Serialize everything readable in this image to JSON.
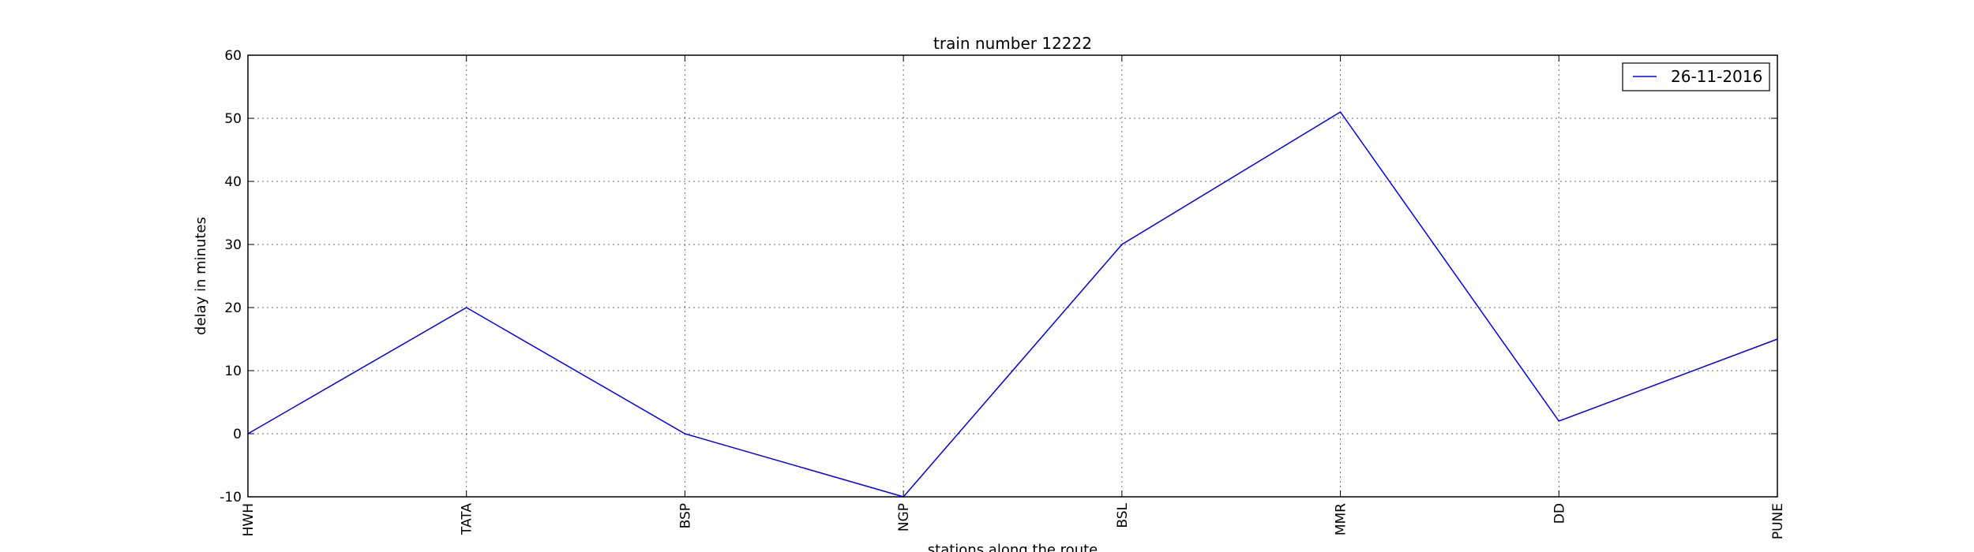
{
  "chart_data": {
    "type": "line",
    "title": "train number 12222",
    "xlabel": "stations along the route",
    "ylabel": "delay in minutes",
    "categories": [
      "HWH",
      "TATA",
      "BSP",
      "NGP",
      "BSL",
      "MMR",
      "DD",
      "PUNE"
    ],
    "series": [
      {
        "name": "26-11-2016",
        "values": [
          0,
          20,
          0,
          -10,
          30,
          51,
          2,
          15
        ],
        "color": "#0000ff"
      }
    ],
    "ylim": [
      -10,
      60
    ],
    "yticks": [
      -10,
      0,
      10,
      20,
      30,
      40,
      50,
      60
    ],
    "grid": true,
    "legend_position": "top-right"
  }
}
